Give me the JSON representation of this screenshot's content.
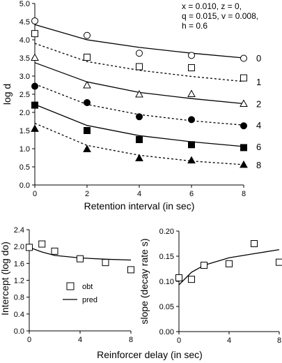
{
  "chart_data": [
    {
      "type": "scatter",
      "xlabel": "Retention interval (in sec)",
      "ylabel": "log d",
      "xlim": [
        0,
        8
      ],
      "ylim": [
        0.0,
        5.0
      ],
      "xticks": [
        0,
        2,
        4,
        6,
        8
      ],
      "yticks": [
        0.0,
        0.5,
        1.0,
        1.5,
        2.0,
        2.5,
        3.0,
        3.5,
        4.0,
        4.5,
        5.0
      ],
      "annotation": [
        "x = 0.010, z = 0,",
        "q = 0.015, v = 0.008,",
        "h = 0.6"
      ],
      "series": [
        {
          "name": "0",
          "marker": "circle-open",
          "line": "solid",
          "points_x": [
            0,
            2,
            4,
            6,
            8
          ],
          "points_y": [
            4.52,
            4.12,
            3.63,
            3.57,
            3.49
          ],
          "fit_x": [
            0,
            2,
            4,
            6,
            8
          ],
          "fit_y": [
            4.42,
            4.0,
            3.79,
            3.63,
            3.5
          ]
        },
        {
          "name": "1",
          "marker": "square-open",
          "line": "dashed",
          "points_x": [
            0,
            2,
            4,
            6,
            8
          ],
          "points_y": [
            4.17,
            3.52,
            3.26,
            3.23,
            2.95
          ],
          "fit_x": [
            0,
            2,
            4,
            6,
            8
          ],
          "fit_y": [
            3.9,
            3.4,
            3.16,
            2.99,
            2.85
          ]
        },
        {
          "name": "2",
          "marker": "triangle-open",
          "line": "solid",
          "points_x": [
            0,
            2,
            4,
            6,
            8
          ],
          "points_y": [
            3.51,
            2.75,
            2.5,
            2.51,
            2.24
          ],
          "fit_x": [
            0,
            2,
            4,
            6,
            8
          ],
          "fit_y": [
            3.37,
            2.84,
            2.55,
            2.38,
            2.24
          ]
        },
        {
          "name": "4",
          "marker": "circle-filled",
          "line": "dashed",
          "points_x": [
            0,
            2,
            4,
            6,
            8
          ],
          "points_y": [
            2.72,
            2.27,
            1.88,
            1.8,
            1.63
          ],
          "fit_x": [
            0,
            2,
            4,
            6,
            8
          ],
          "fit_y": [
            2.78,
            2.22,
            1.94,
            1.77,
            1.65
          ]
        },
        {
          "name": "6",
          "marker": "square-filled",
          "line": "solid",
          "points_x": [
            0,
            2,
            4,
            6,
            8
          ],
          "points_y": [
            2.2,
            1.5,
            1.25,
            1.11,
            1.03
          ],
          "fit_x": [
            0,
            2,
            4,
            6,
            8
          ],
          "fit_y": [
            2.22,
            1.64,
            1.36,
            1.19,
            1.06
          ]
        },
        {
          "name": "8",
          "marker": "triangle-filled",
          "line": "dashed",
          "points_x": [
            0,
            2,
            4,
            6,
            8
          ],
          "points_y": [
            1.55,
            0.99,
            0.74,
            0.68,
            0.56
          ],
          "fit_x": [
            0,
            2,
            4,
            6,
            8
          ],
          "fit_y": [
            1.7,
            1.09,
            0.82,
            0.66,
            0.56
          ]
        }
      ]
    },
    {
      "type": "scatter",
      "xlabel": "Reinforcer delay (in sec)",
      "ylabel": "Intercept (log do)",
      "xlim": [
        0,
        8
      ],
      "ylim": [
        0.0,
        2.4
      ],
      "xticks": [
        0,
        4,
        8
      ],
      "yticks": [
        0.0,
        0.4,
        0.8,
        1.2,
        1.6,
        2.0,
        2.4
      ],
      "legend": {
        "placement": "center",
        "entries": [
          {
            "label": "obt",
            "marker": "square-open"
          },
          {
            "label": "pred",
            "marker": "line"
          }
        ]
      },
      "obt": {
        "x": [
          0,
          1,
          2,
          4,
          6,
          8
        ],
        "y": [
          1.98,
          2.06,
          1.89,
          1.71,
          1.62,
          1.45
        ]
      },
      "pred": {
        "x": [
          0,
          1,
          2,
          4,
          6,
          8
        ],
        "y": [
          1.98,
          1.87,
          1.79,
          1.73,
          1.7,
          1.68
        ]
      }
    },
    {
      "type": "scatter",
      "xlabel": "Reinforcer delay (in sec)",
      "ylabel": "slope (decay rate s)",
      "xlim": [
        0,
        8
      ],
      "ylim": [
        0.0,
        0.2
      ],
      "xticks": [
        0,
        4,
        8
      ],
      "yticks": [
        0.0,
        0.05,
        0.1,
        0.15,
        0.2
      ],
      "obt": {
        "x": [
          0,
          1,
          2,
          4,
          6,
          8
        ],
        "y": [
          0.107,
          0.104,
          0.132,
          0.135,
          0.175,
          0.138
        ]
      },
      "pred": {
        "x": [
          0,
          1,
          2,
          4,
          6,
          8
        ],
        "y": [
          0.093,
          0.118,
          0.132,
          0.147,
          0.155,
          0.163
        ]
      }
    }
  ],
  "shared_xlabel": "Reinforcer delay (in sec)"
}
